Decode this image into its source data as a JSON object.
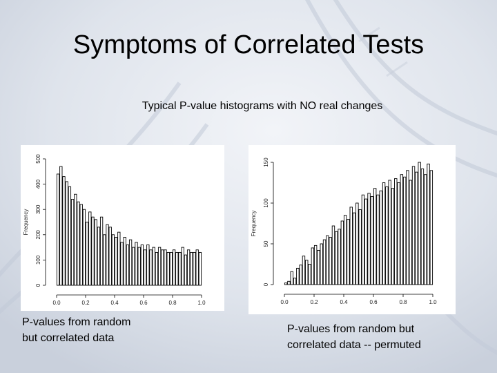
{
  "slide": {
    "title": "Symptoms of Correlated Tests",
    "subtitle": "Typical P-value histograms with NO real changes",
    "caption_left": [
      "P-values from random",
      "but correlated data"
    ],
    "caption_right": [
      "P-values from random but",
      "correlated data -- permuted"
    ]
  },
  "chart_data": [
    {
      "type": "bar",
      "title": "",
      "xlabel": "",
      "ylabel": "Frequency",
      "xlim": [
        0,
        1
      ],
      "ylim": [
        0,
        500
      ],
      "x_ticks": [
        "0.0",
        "0.2",
        "0.4",
        "0.6",
        "0.8",
        "1.0"
      ],
      "y_ticks": [
        "0",
        "100",
        "200",
        "300",
        "400",
        "500"
      ],
      "bin_width": 0.02,
      "values": [
        440,
        470,
        430,
        410,
        390,
        340,
        360,
        330,
        320,
        300,
        250,
        290,
        270,
        260,
        230,
        270,
        200,
        240,
        230,
        200,
        190,
        210,
        170,
        190,
        160,
        180,
        150,
        170,
        150,
        160,
        140,
        160,
        140,
        150,
        130,
        150,
        140,
        140,
        130,
        130,
        140,
        130,
        130,
        150,
        120,
        140,
        130,
        130,
        140,
        130
      ]
    },
    {
      "type": "bar",
      "title": "",
      "xlabel": "",
      "ylabel": "Frequency",
      "xlim": [
        0,
        1
      ],
      "ylim": [
        0,
        150
      ],
      "x_ticks": [
        "0.0",
        "0.2",
        "0.4",
        "0.6",
        "0.8",
        "1.0"
      ],
      "y_ticks": [
        "0",
        "50",
        "100",
        "150"
      ],
      "bin_width": 0.02,
      "values": [
        2,
        4,
        16,
        8,
        20,
        24,
        35,
        30,
        25,
        45,
        48,
        42,
        50,
        55,
        60,
        58,
        72,
        65,
        68,
        78,
        85,
        80,
        95,
        88,
        100,
        92,
        110,
        105,
        112,
        108,
        118,
        110,
        115,
        125,
        120,
        128,
        118,
        130,
        125,
        135,
        132,
        140,
        128,
        145,
        138,
        150,
        142,
        135,
        148,
        140
      ]
    }
  ]
}
